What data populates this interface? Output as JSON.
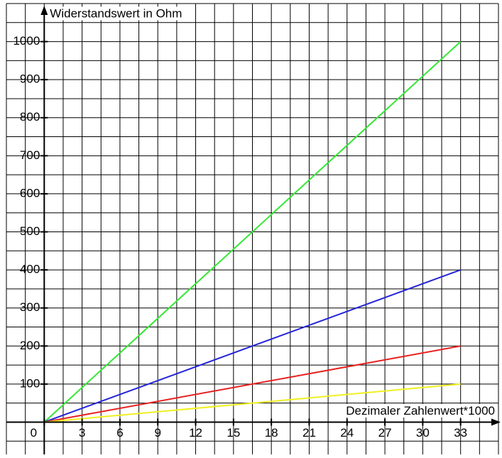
{
  "chart_data": {
    "type": "line",
    "xlabel": "Dezimaler Zahlenwert*1000",
    "ylabel": "Widerstandswert in Ohm",
    "x": [
      0,
      33
    ],
    "series": [
      {
        "color": "#33e833",
        "values": [
          0,
          1000
        ]
      },
      {
        "color": "#2424d8",
        "values": [
          0,
          400
        ]
      },
      {
        "color": "#e82020",
        "values": [
          0,
          200
        ]
      },
      {
        "color": "#f0f020",
        "values": [
          0,
          100
        ]
      }
    ],
    "xlim": [
      -3,
      36
    ],
    "ylim": [
      -85,
      1100
    ],
    "xticks": [
      0,
      3,
      6,
      9,
      12,
      15,
      18,
      21,
      24,
      27,
      30,
      33
    ],
    "yticks": [
      100,
      200,
      300,
      400,
      500,
      600,
      700,
      800,
      900,
      1000
    ],
    "grid": true
  }
}
